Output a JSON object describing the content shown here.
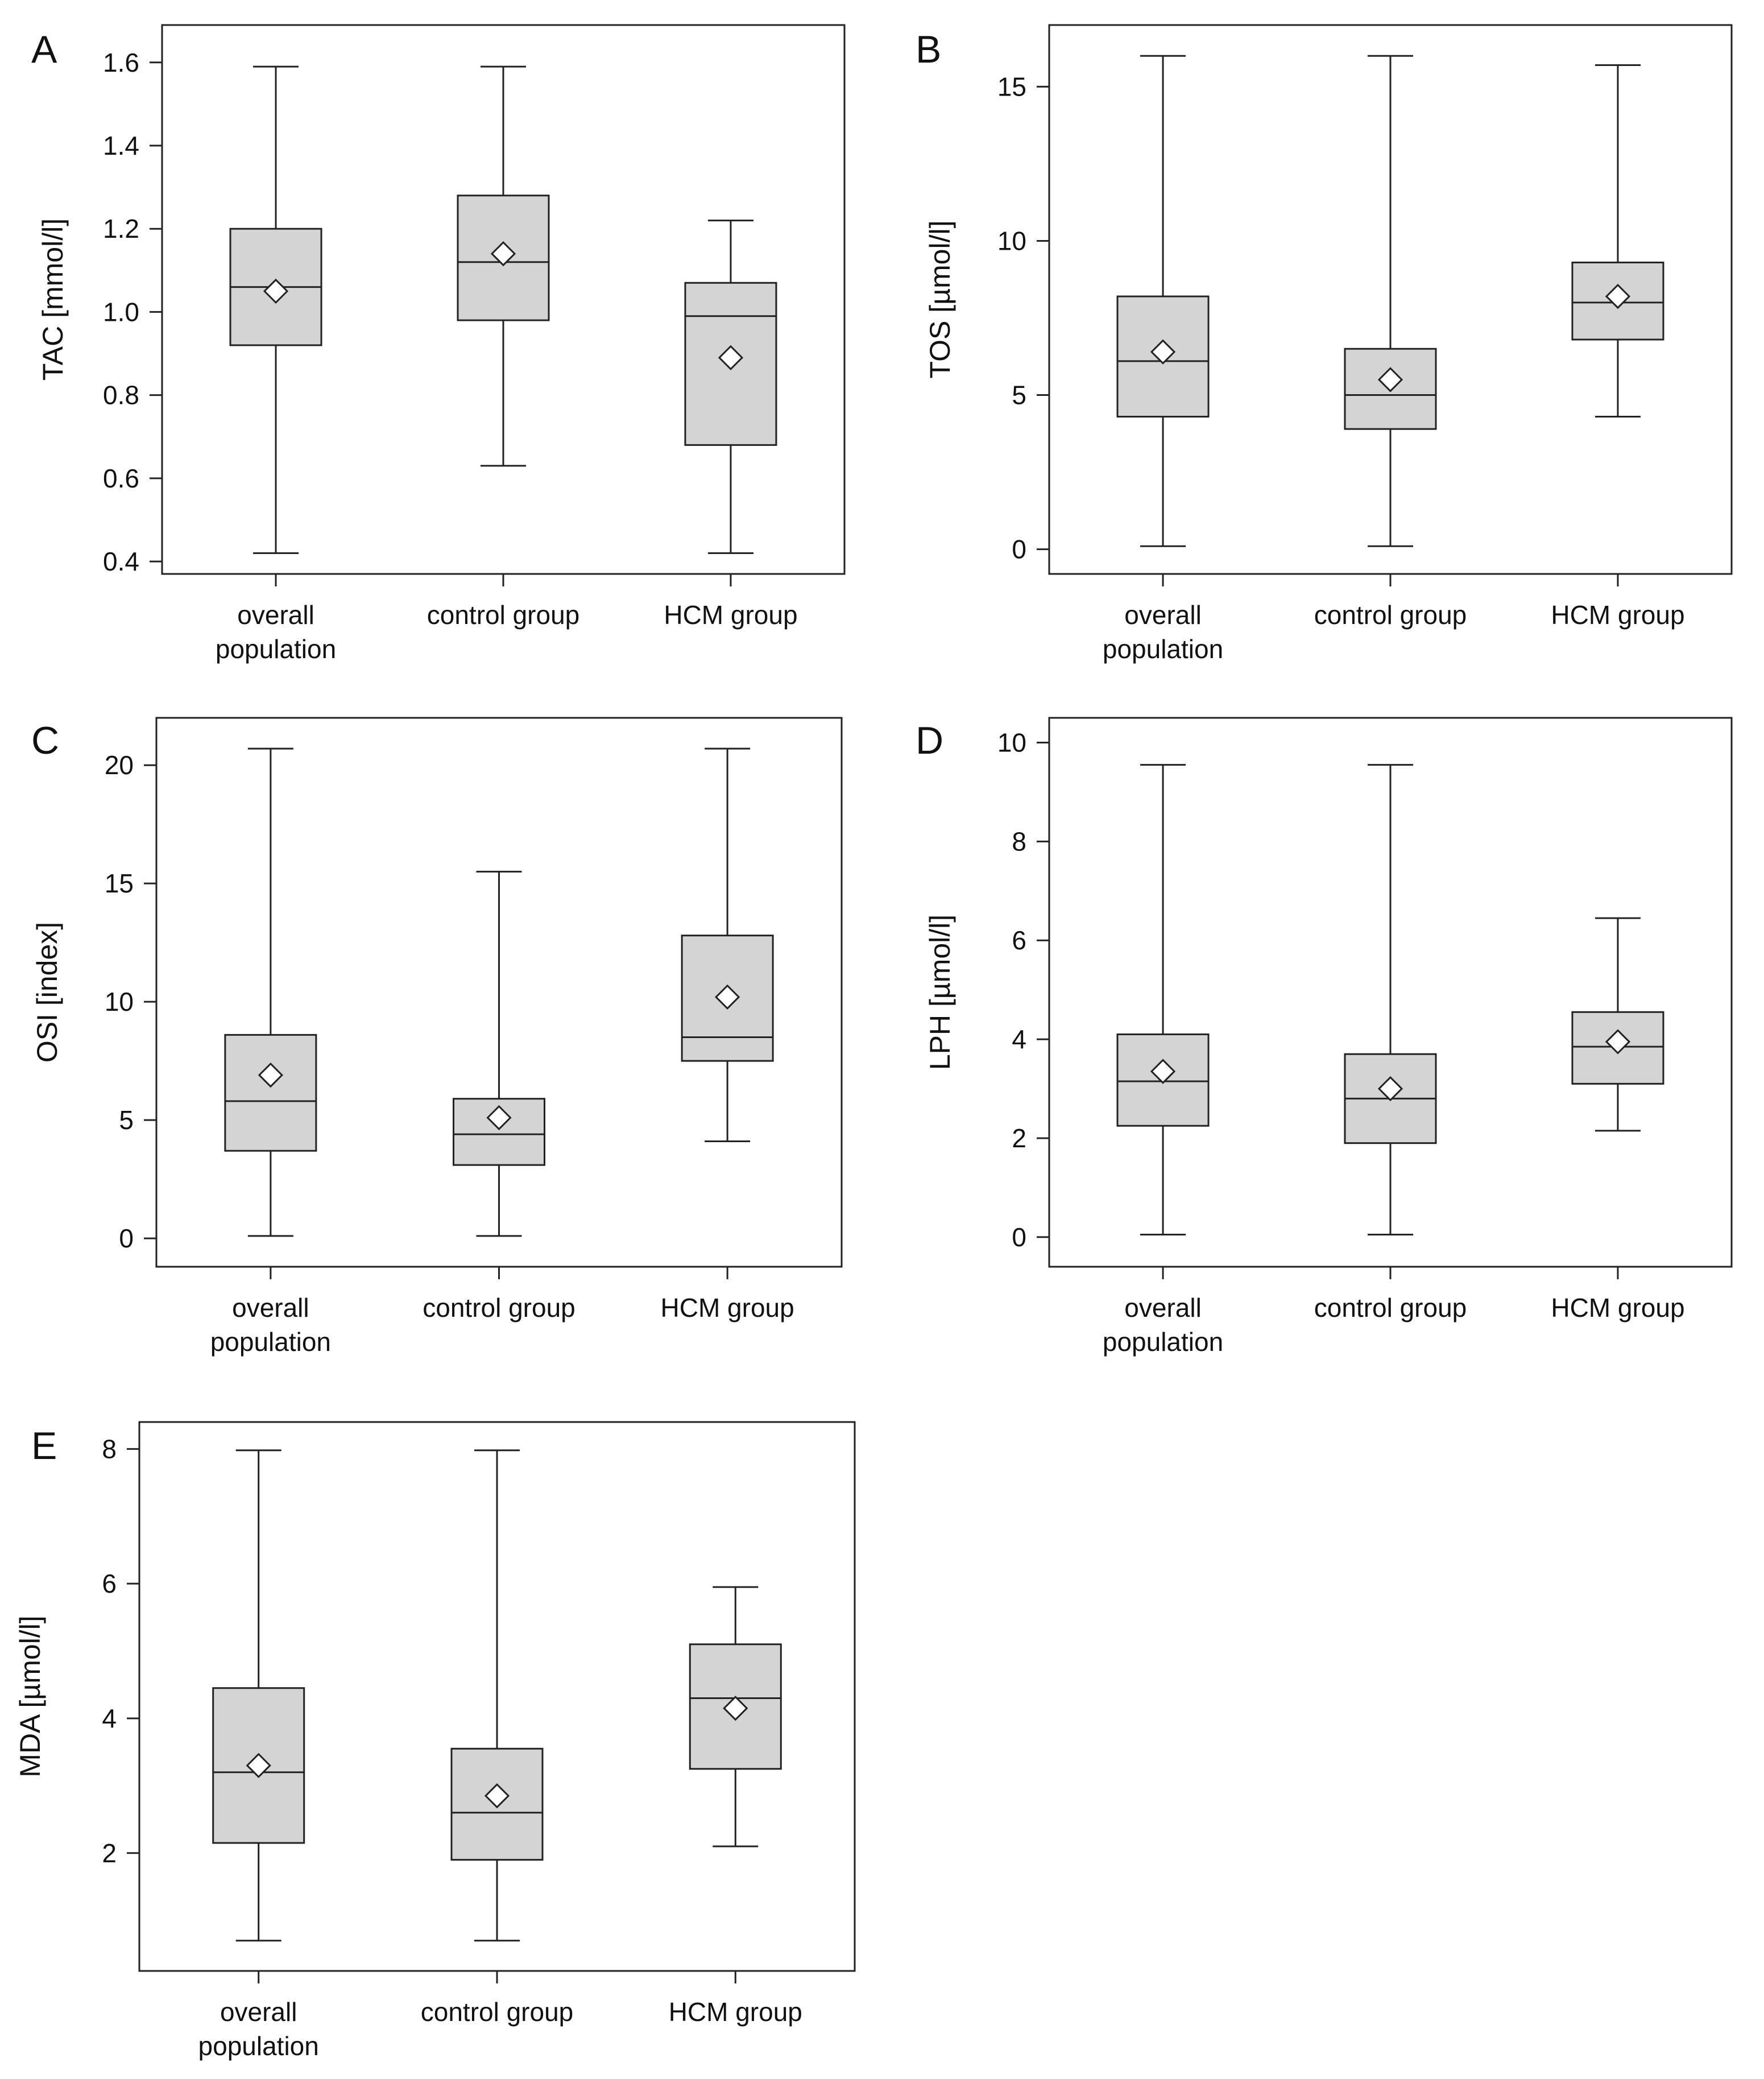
{
  "chart_data": [
    {
      "panel": "A",
      "type": "box",
      "ylabel": "TAC [mmol/l]",
      "ylim": [
        0.37,
        1.69
      ],
      "yticks": [
        0.4,
        0.6,
        0.8,
        1.0,
        1.2,
        1.4,
        1.6
      ],
      "ytick_labels": [
        "0.4",
        "0.6",
        "0.8",
        "1.0",
        "1.2",
        "1.4",
        "1.6"
      ],
      "categories": [
        [
          "overall",
          "population"
        ],
        [
          "control group"
        ],
        [
          "HCM group"
        ]
      ],
      "series": [
        {
          "category": "overall population",
          "min": 0.42,
          "q1": 0.92,
          "median": 1.06,
          "q3": 1.2,
          "max": 1.59,
          "mean": 1.05
        },
        {
          "category": "control group",
          "min": 0.63,
          "q1": 0.98,
          "median": 1.12,
          "q3": 1.28,
          "max": 1.59,
          "mean": 1.14
        },
        {
          "category": "HCM group",
          "min": 0.42,
          "q1": 0.68,
          "median": 0.99,
          "q3": 1.07,
          "max": 1.22,
          "mean": 0.89
        }
      ]
    },
    {
      "panel": "B",
      "type": "box",
      "ylabel": "TOS [µmol/l]",
      "ylim": [
        -0.8,
        17
      ],
      "yticks": [
        0,
        5,
        10,
        15
      ],
      "ytick_labels": [
        "0",
        "5",
        "10",
        "15"
      ],
      "categories": [
        [
          "overall",
          "population"
        ],
        [
          "control group"
        ],
        [
          "HCM group"
        ]
      ],
      "series": [
        {
          "category": "overall population",
          "min": 0.1,
          "q1": 4.3,
          "median": 6.1,
          "q3": 8.2,
          "max": 16.0,
          "mean": 6.4
        },
        {
          "category": "control group",
          "min": 0.1,
          "q1": 3.9,
          "median": 5.0,
          "q3": 6.5,
          "max": 16.0,
          "mean": 5.5
        },
        {
          "category": "HCM group",
          "min": 4.3,
          "q1": 6.8,
          "median": 8.0,
          "q3": 9.3,
          "max": 15.7,
          "mean": 8.2
        }
      ]
    },
    {
      "panel": "C",
      "type": "box",
      "ylabel": "OSI [index]",
      "ylim": [
        -1.2,
        22
      ],
      "yticks": [
        0,
        5,
        10,
        15,
        20
      ],
      "ytick_labels": [
        "0",
        "5",
        "10",
        "15",
        "20"
      ],
      "categories": [
        [
          "overall",
          "population"
        ],
        [
          "control group"
        ],
        [
          "HCM group"
        ]
      ],
      "series": [
        {
          "category": "overall population",
          "min": 0.1,
          "q1": 3.7,
          "median": 5.8,
          "q3": 8.6,
          "max": 20.7,
          "mean": 6.9
        },
        {
          "category": "control group",
          "min": 0.1,
          "q1": 3.1,
          "median": 4.4,
          "q3": 5.9,
          "max": 15.5,
          "mean": 5.1
        },
        {
          "category": "HCM group",
          "min": 4.1,
          "q1": 7.5,
          "median": 8.5,
          "q3": 12.8,
          "max": 20.7,
          "mean": 10.2
        }
      ]
    },
    {
      "panel": "D",
      "type": "box",
      "ylabel": "LPH [µmol/l]",
      "ylim": [
        -0.6,
        10.5
      ],
      "yticks": [
        0,
        2,
        4,
        6,
        8,
        10
      ],
      "ytick_labels": [
        "0",
        "2",
        "4",
        "6",
        "8",
        "10"
      ],
      "categories": [
        [
          "overall",
          "population"
        ],
        [
          "control group"
        ],
        [
          "HCM group"
        ]
      ],
      "series": [
        {
          "category": "overall population",
          "min": 0.05,
          "q1": 2.25,
          "median": 3.15,
          "q3": 4.1,
          "max": 9.55,
          "mean": 3.35
        },
        {
          "category": "control group",
          "min": 0.05,
          "q1": 1.9,
          "median": 2.8,
          "q3": 3.7,
          "max": 9.55,
          "mean": 3.0
        },
        {
          "category": "HCM group",
          "min": 2.15,
          "q1": 3.1,
          "median": 3.85,
          "q3": 4.55,
          "max": 6.45,
          "mean": 3.95
        }
      ]
    },
    {
      "panel": "E",
      "type": "box",
      "ylabel": "MDA [µmol/l]",
      "ylim": [
        0.25,
        8.4
      ],
      "yticks": [
        2,
        4,
        6,
        8
      ],
      "ytick_labels": [
        "2",
        "4",
        "6",
        "8"
      ],
      "categories": [
        [
          "overall",
          "population"
        ],
        [
          "control group"
        ],
        [
          "HCM group"
        ]
      ],
      "series": [
        {
          "category": "overall population",
          "min": 0.7,
          "q1": 2.15,
          "median": 3.2,
          "q3": 4.45,
          "max": 7.98,
          "mean": 3.3
        },
        {
          "category": "control group",
          "min": 0.7,
          "q1": 1.9,
          "median": 2.6,
          "q3": 3.55,
          "max": 7.98,
          "mean": 2.85
        },
        {
          "category": "HCM group",
          "min": 2.1,
          "q1": 3.25,
          "median": 4.3,
          "q3": 5.1,
          "max": 5.95,
          "mean": 4.15
        }
      ]
    }
  ]
}
